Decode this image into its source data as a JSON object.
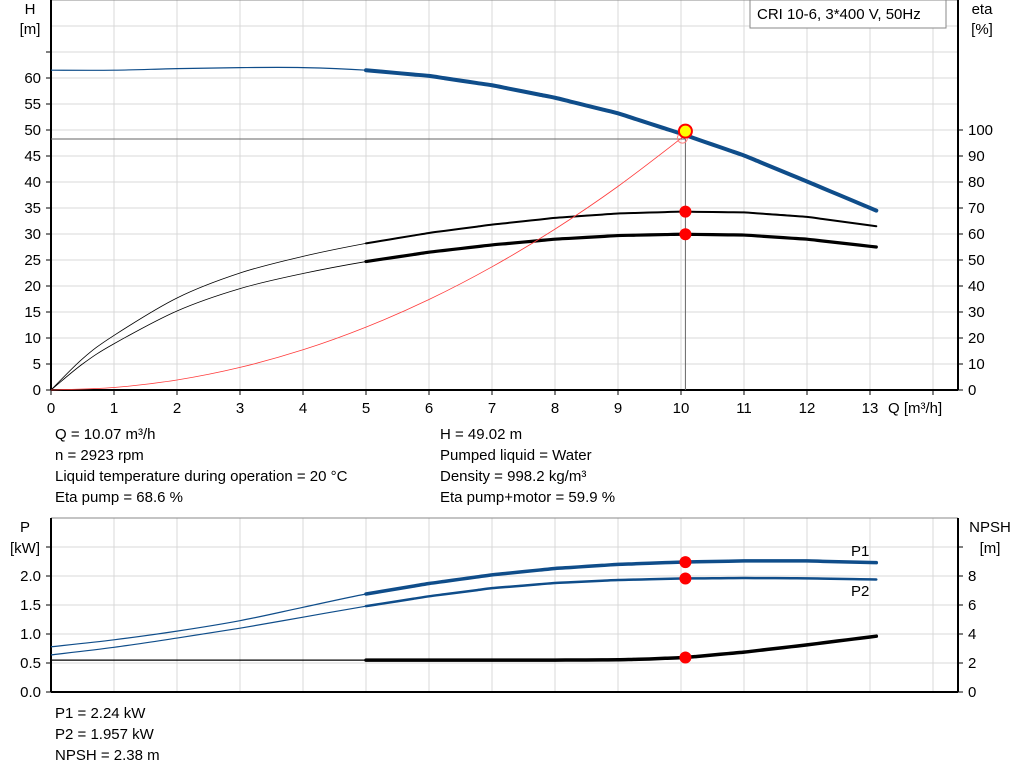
{
  "chart_data": [
    {
      "type": "line",
      "title": "CRI 10-6, 3*400 V, 50Hz",
      "xlabel": "Q [m³/h]",
      "ylabel": "H\n[m]",
      "ylabel_lines": [
        "H",
        "[m]"
      ],
      "y2label_lines": [
        "eta",
        "[%]"
      ],
      "xlim": [
        0,
        14.4
      ],
      "ylim": [
        0,
        75
      ],
      "y2lim": [
        0,
        150
      ],
      "grid": true,
      "x_ticks": [
        0,
        1,
        2,
        3,
        4,
        5,
        6,
        7,
        8,
        9,
        10,
        11,
        12,
        13
      ],
      "y_ticks": [
        0,
        5,
        10,
        15,
        20,
        25,
        30,
        35,
        40,
        45,
        50,
        55,
        60
      ],
      "y2_ticks": [
        0,
        10,
        20,
        30,
        40,
        50,
        60,
        70,
        80,
        90,
        100
      ],
      "series": [
        {
          "key": "head",
          "axis": "left",
          "color": "#0f4d8a",
          "x": [
            0,
            1,
            2,
            3,
            4,
            5,
            6,
            7,
            8,
            9,
            10,
            11,
            12,
            13.1
          ],
          "y": [
            61.5,
            61.5,
            61.8,
            62,
            62,
            61.5,
            60.4,
            58.6,
            56.2,
            53.2,
            49.3,
            45.1,
            40.1,
            34.5
          ]
        },
        {
          "key": "eta-pump",
          "axis": "right",
          "color": "#000000",
          "x": [
            0,
            0.5,
            1,
            2,
            3,
            4,
            5,
            6,
            7,
            8,
            9,
            10,
            11,
            12,
            13.1
          ],
          "y": [
            0,
            12,
            21,
            35.4,
            45,
            51.4,
            56.4,
            60.4,
            63.6,
            66.2,
            67.9,
            68.6,
            68.3,
            66.6,
            63
          ]
        },
        {
          "key": "eta-pump-motor",
          "axis": "right",
          "color": "#000000",
          "x": [
            0,
            0.5,
            1,
            2,
            3,
            4,
            5,
            6,
            7,
            8,
            9,
            10,
            11,
            12,
            13.1
          ],
          "y": [
            0,
            10,
            17.8,
            30.4,
            39,
            44.8,
            49.4,
            53,
            55.8,
            58,
            59.4,
            59.9,
            59.6,
            58,
            55
          ]
        },
        {
          "key": "system-curve",
          "axis": "left",
          "color": "#ff3b3b",
          "x": [
            0,
            1,
            2,
            3,
            4,
            5,
            6,
            7,
            8,
            9,
            10.07
          ],
          "y": [
            0,
            0.48,
            1.93,
            4.35,
            7.73,
            12.09,
            17.4,
            23.69,
            30.94,
            39.16,
            49.02
          ]
        }
      ],
      "operating_point": {
        "Q": 10.07,
        "H": 49.02,
        "eta_pump": 68.6,
        "eta_pump_motor": 59.9
      }
    },
    {
      "type": "line",
      "ylabel_lines": [
        "P",
        "[kW]"
      ],
      "y2label_lines": [
        "NPSH",
        "[m]"
      ],
      "xlim": [
        0,
        14.4
      ],
      "ylim": [
        0,
        2.5
      ],
      "y2lim": [
        0,
        10
      ],
      "grid": true,
      "y_ticks": [
        "0.0",
        "0.5",
        "1.0",
        "1.5",
        "2.0"
      ],
      "y2_ticks": [
        "0",
        "2",
        "4",
        "6",
        "8"
      ],
      "series": [
        {
          "key": "P1",
          "name": "P1",
          "axis": "left",
          "color": "#0f4d8a",
          "x": [
            0,
            1,
            2,
            3,
            4,
            5,
            6,
            7,
            8,
            9,
            10,
            11,
            12,
            13.1
          ],
          "y": [
            0.78,
            0.9,
            1.05,
            1.23,
            1.46,
            1.69,
            1.87,
            2.02,
            2.13,
            2.2,
            2.24,
            2.26,
            2.26,
            2.23
          ]
        },
        {
          "key": "P2",
          "name": "P2",
          "axis": "left",
          "color": "#0f4d8a",
          "x": [
            0,
            1,
            2,
            3,
            4,
            5,
            6,
            7,
            8,
            9,
            10,
            11,
            12,
            13.1
          ],
          "y": [
            0.64,
            0.77,
            0.93,
            1.1,
            1.29,
            1.48,
            1.65,
            1.79,
            1.88,
            1.93,
            1.957,
            1.965,
            1.96,
            1.94
          ]
        },
        {
          "key": "NPSH",
          "axis": "right",
          "color": "#000000",
          "x": [
            0,
            2,
            4,
            5,
            6,
            7,
            8,
            9,
            9.5,
            10.07,
            11,
            12,
            13.1
          ],
          "y": [
            2.2,
            2.2,
            2.2,
            2.2,
            2.2,
            2.2,
            2.2,
            2.22,
            2.28,
            2.38,
            2.75,
            3.25,
            3.85
          ]
        }
      ],
      "operating_point": {
        "Q": 10.07,
        "P1": 2.24,
        "P2": 1.957,
        "NPSH": 2.38
      }
    }
  ],
  "info_top": {
    "left": [
      "Q = 10.07 m³/h",
      "n = 2923 rpm",
      "Liquid temperature during operation = 20 °C",
      "Eta pump = 68.6 %"
    ],
    "right": [
      "H = 49.02 m",
      "Pumped liquid = Water",
      "Density = 998.2 kg/m³",
      "Eta pump+motor = 59.9 %"
    ]
  },
  "info_bottom": [
    "P1 = 2.24 kW",
    "P2 = 1.957 kW",
    "NPSH = 2.38 m"
  ],
  "colors": {
    "grid": "#d9d9d9",
    "head": "#0f4d8a",
    "marker": "#ff0000",
    "op_fill": "#ffff00"
  }
}
